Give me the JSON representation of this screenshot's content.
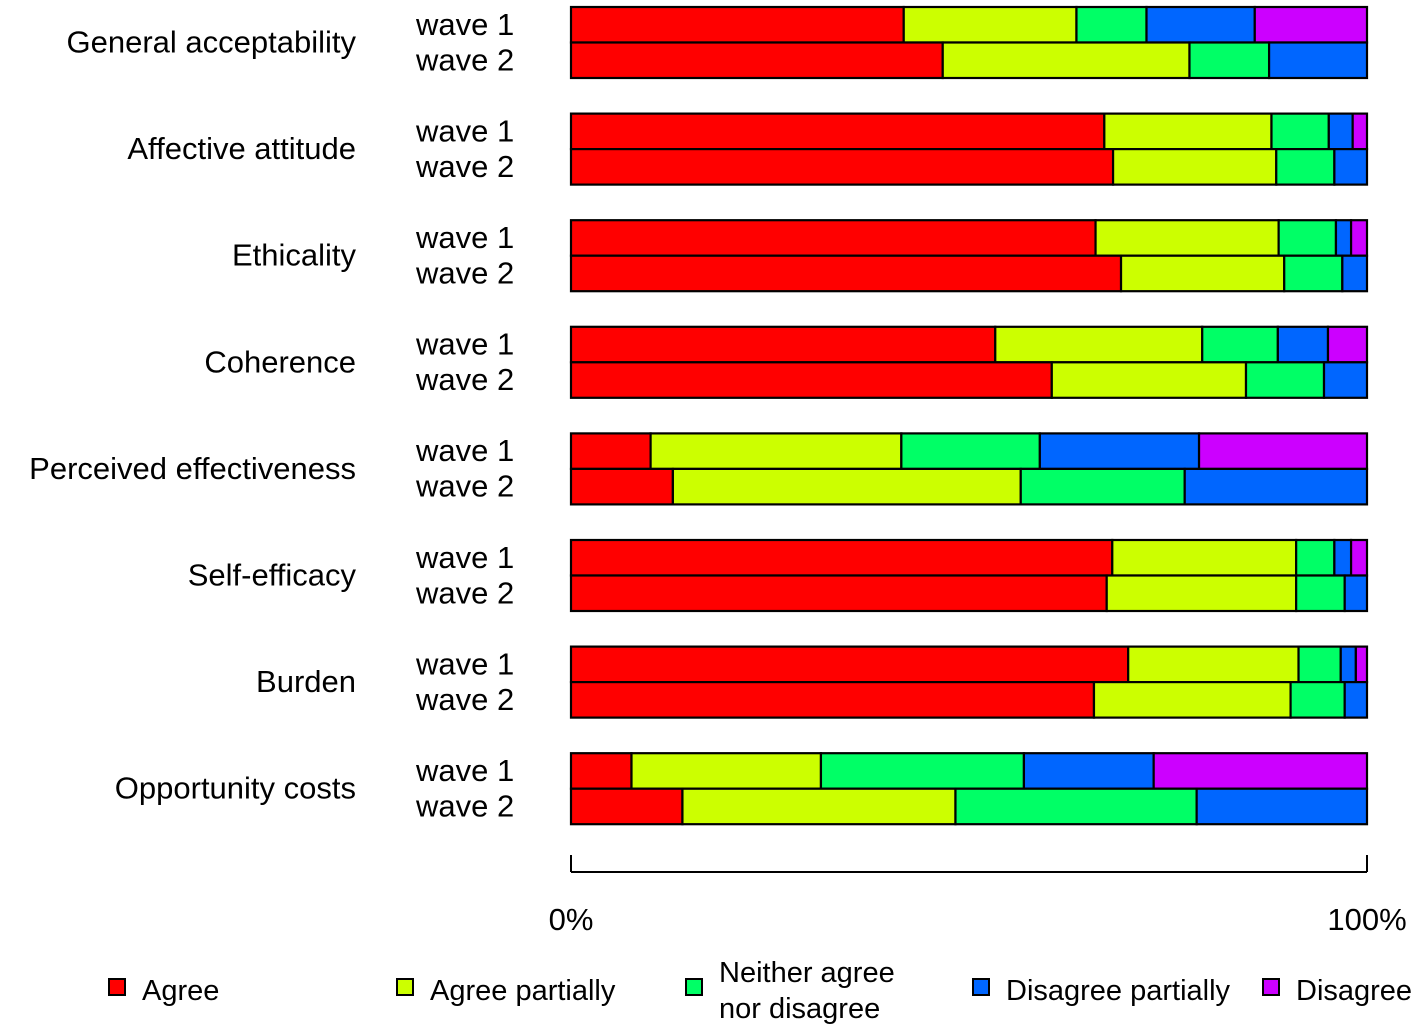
{
  "chart_data": {
    "type": "bar",
    "orientation": "horizontal",
    "stacked": true,
    "normalized": true,
    "categories": [
      "General acceptability",
      "Affective attitude",
      "Ethicality",
      "Coherence",
      "Perceived effectiveness",
      "Self-efficacy",
      "Burden",
      "Opportunity costs"
    ],
    "wave_labels": [
      "wave 1",
      "wave 2"
    ],
    "series": [
      {
        "name": "Agree",
        "color": "#ff0000"
      },
      {
        "name": "Agree partially",
        "color": "#ccff00"
      },
      {
        "name": "Neither agree nor disagree",
        "label_lines": [
          "Neither agree",
          "nor disagree"
        ],
        "color": "#00ff66"
      },
      {
        "name": "Disagree partially",
        "color": "#0066ff"
      },
      {
        "name": "Disagree",
        "color": "#cc00ff"
      }
    ],
    "values": [
      [
        [
          41.8,
          21.7,
          8.8,
          13.6,
          14.1
        ],
        [
          46.7,
          31.0,
          10.0,
          12.3,
          0.0
        ]
      ],
      [
        [
          67.0,
          21.0,
          7.2,
          3.0,
          1.8
        ],
        [
          68.1,
          20.5,
          7.3,
          4.1,
          0.0
        ]
      ],
      [
        [
          65.9,
          23.0,
          7.2,
          1.9,
          2.0
        ],
        [
          69.1,
          20.5,
          7.3,
          3.1,
          0.0
        ]
      ],
      [
        [
          53.3,
          26.0,
          9.5,
          6.3,
          4.9
        ],
        [
          60.4,
          24.4,
          9.8,
          5.4,
          0.0
        ]
      ],
      [
        [
          10.0,
          31.5,
          17.4,
          20.0,
          21.1
        ],
        [
          12.8,
          43.7,
          20.6,
          22.9,
          0.0
        ]
      ],
      [
        [
          68.0,
          23.1,
          4.8,
          2.1,
          2.0
        ],
        [
          67.3,
          23.8,
          6.1,
          2.8,
          0.0
        ]
      ],
      [
        [
          70.0,
          21.4,
          5.3,
          1.9,
          1.4
        ],
        [
          65.7,
          24.7,
          6.8,
          2.8,
          0.0
        ]
      ],
      [
        [
          7.6,
          23.8,
          25.5,
          16.3,
          26.8
        ],
        [
          14.0,
          34.3,
          30.3,
          21.4,
          0.0
        ]
      ]
    ],
    "xlim": [
      0,
      100
    ],
    "x_ticks": [
      "0%",
      "100%"
    ],
    "legend_position": "bottom",
    "title": "",
    "xlabel": "",
    "ylabel": ""
  }
}
